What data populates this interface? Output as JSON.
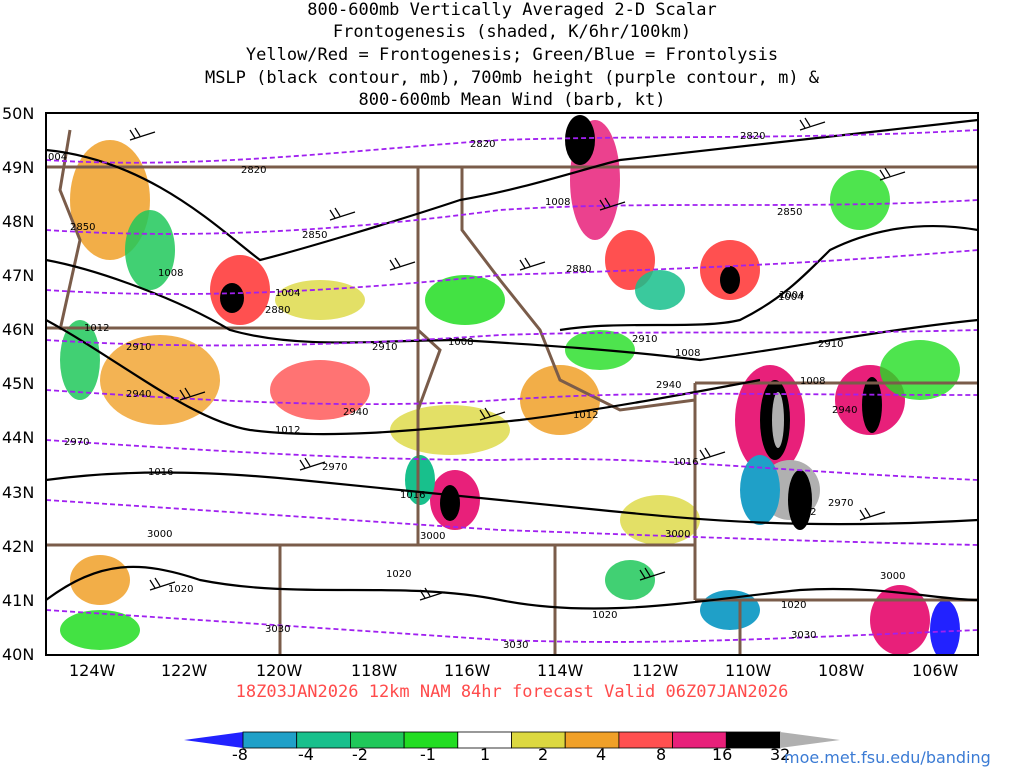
{
  "title": {
    "line1": "800-600mb Vertically Averaged 2-D Scalar",
    "line2": "Frontogenesis (shaded, K/6hr/100km)",
    "line3": "Yellow/Red = Frontogenesis;  Green/Blue = Frontolysis",
    "line4": "MSLP (black contour, mb), 700mb height (purple contour, m) &",
    "line5": "800-600mb Mean Wind (barb, kt)"
  },
  "footer": "18Z03JAN2026 12km NAM 84hr forecast Valid 06Z07JAN2026",
  "credit": "moe.met.fsu.edu/banding",
  "axes": {
    "lat_labels": [
      "50N",
      "49N",
      "48N",
      "47N",
      "46N",
      "45N",
      "44N",
      "43N",
      "42N",
      "41N",
      "40N"
    ],
    "lon_labels": [
      "124W",
      "122W",
      "120W",
      "118W",
      "116W",
      "114W",
      "112W",
      "110W",
      "108W",
      "106W"
    ]
  },
  "colorbar": {
    "tick_labels": [
      "-8",
      "-4",
      "-2",
      "-1",
      "1",
      "2",
      "4",
      "8",
      "16",
      "32"
    ],
    "colors": [
      "#2222ff",
      "#1fa0c8",
      "#18c08c",
      "#20c85a",
      "#22dd22",
      "#ffffff",
      "#dcd840",
      "#f0a028",
      "#ff5050",
      "#e8207a",
      "#000000",
      "#b0b0b0"
    ]
  },
  "contour_labels": {
    "mslp": [
      "004",
      "1008",
      "1004",
      "1012",
      "1008",
      "1012",
      "1016",
      "1016",
      "1008",
      "1012",
      "1008",
      "1004",
      "1020",
      "1020",
      "1020",
      "1020",
      "1012",
      "1004",
      "1016",
      "1008"
    ],
    "height": [
      "2820",
      "2820",
      "2850",
      "2850",
      "2880",
      "2910",
      "2910",
      "2940",
      "2940",
      "2970",
      "2970",
      "3000",
      "3000",
      "3000",
      "3000",
      "3030",
      "3030",
      "3030",
      "2910",
      "2940",
      "2970",
      "2850",
      "2820",
      "2880",
      "2910",
      "2940"
    ]
  },
  "colors": {
    "state_borders": "#7a5c4a",
    "mslp_contour": "#000000",
    "height_contour": "#a020f0",
    "footer_text": "#ff4b4b",
    "credit_text": "#3b7bd4"
  }
}
